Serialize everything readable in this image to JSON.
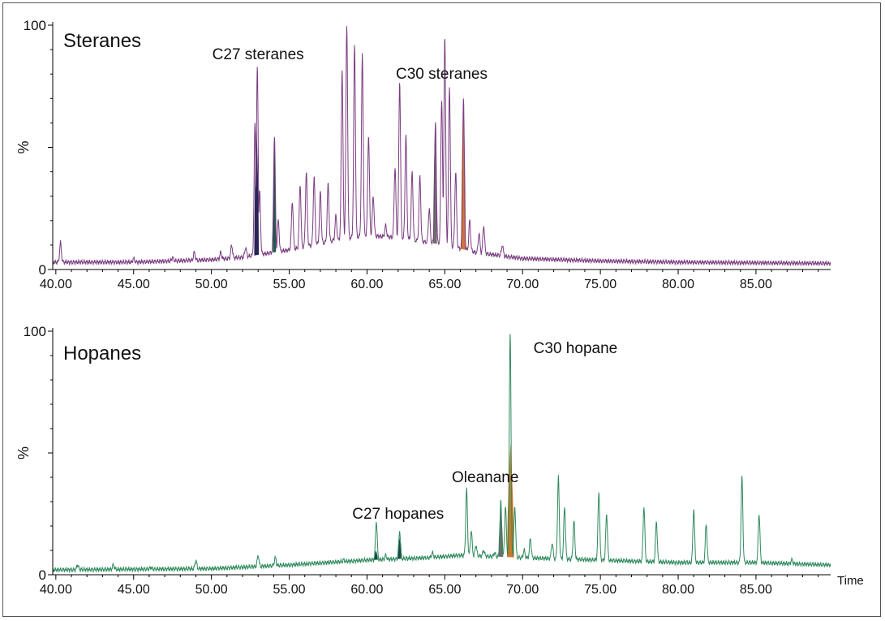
{
  "colors": {
    "steranes_trace": "#7a3c80",
    "hopanes_trace": "#2f8a5c",
    "axis": "#000000",
    "c27_sterane_fill": "#2b2257",
    "c27_sterane_fill_2": "#1f5a4a",
    "c30_sterane_fill": "#6e6e6e",
    "c30_sterane_fill_2": "#d0743a",
    "c27_hopane_fill": "#164a4a",
    "oleanane_fill": "#6e6e6e",
    "c30_hopane_fill": "#c87a2a"
  },
  "chart_data": [
    {
      "type": "line",
      "title": "Steranes",
      "xlabel": "",
      "ylabel": "%",
      "xlim": [
        39.8,
        89.8
      ],
      "ylim": [
        0,
        100
      ],
      "x_ticks": [
        "40.00",
        "45.00",
        "50.00",
        "55.00",
        "60.00",
        "65.00",
        "70.00",
        "75.00",
        "80.00",
        "85.00"
      ],
      "y_ticks": [
        "0",
        "%",
        "100"
      ],
      "baseline": [
        [
          39.8,
          3
        ],
        [
          45,
          3
        ],
        [
          50,
          4
        ],
        [
          52,
          5
        ],
        [
          55,
          8
        ],
        [
          58,
          12
        ],
        [
          60,
          14
        ],
        [
          62,
          13
        ],
        [
          65,
          10
        ],
        [
          67,
          7
        ],
        [
          70,
          4.5
        ],
        [
          75,
          3.5
        ],
        [
          80,
          3
        ],
        [
          89.8,
          2.5
        ]
      ],
      "peaks": [
        [
          40.3,
          11
        ],
        [
          45,
          4.5
        ],
        [
          47.5,
          5
        ],
        [
          48.9,
          7
        ],
        [
          50.6,
          7
        ],
        [
          51.3,
          10
        ],
        [
          52.2,
          9
        ],
        [
          52.8,
          60
        ],
        [
          52.95,
          83
        ],
        [
          53.1,
          32
        ],
        [
          54.05,
          55
        ],
        [
          54.3,
          20
        ],
        [
          55.2,
          28
        ],
        [
          55.7,
          35
        ],
        [
          56.1,
          40
        ],
        [
          56.6,
          38
        ],
        [
          57,
          32
        ],
        [
          57.5,
          35
        ],
        [
          58,
          22
        ],
        [
          58.4,
          82
        ],
        [
          58.7,
          100
        ],
        [
          59.2,
          92
        ],
        [
          59.7,
          88
        ],
        [
          60.1,
          55
        ],
        [
          60.4,
          30
        ],
        [
          61.2,
          18
        ],
        [
          61.8,
          42
        ],
        [
          62.1,
          77
        ],
        [
          62.5,
          55
        ],
        [
          62.9,
          40
        ],
        [
          63.4,
          38
        ],
        [
          64,
          25
        ],
        [
          64.4,
          60
        ],
        [
          64.8,
          70
        ],
        [
          65,
          96
        ],
        [
          65.3,
          75
        ],
        [
          65.7,
          40
        ],
        [
          66.2,
          70
        ],
        [
          66.6,
          20
        ],
        [
          67.2,
          15
        ],
        [
          67.5,
          18
        ],
        [
          68.7,
          10
        ]
      ],
      "annotations": [
        {
          "text": "C27 steranes",
          "x": 53.0,
          "y": 86
        },
        {
          "text": "C30 steranes",
          "x": 64.8,
          "y": 78
        }
      ],
      "highlighted": [
        {
          "from": 52.75,
          "to": 53.05,
          "color": "c27_sterane_fill",
          "height": 60
        },
        {
          "from": 53.95,
          "to": 54.15,
          "color": "c27_sterane_fill_2",
          "height": 55
        },
        {
          "from": 64.25,
          "to": 64.5,
          "color": "c30_sterane_fill",
          "height": 60
        },
        {
          "from": 66.05,
          "to": 66.35,
          "color": "c30_sterane_fill_2",
          "height": 72
        }
      ]
    },
    {
      "type": "line",
      "title": "Hopanes",
      "xlabel": "Time",
      "ylabel": "%",
      "xlim": [
        39.8,
        89.8
      ],
      "ylim": [
        0,
        100
      ],
      "x_ticks": [
        "40.00",
        "45.00",
        "50.00",
        "55.00",
        "60.00",
        "65.00",
        "70.00",
        "75.00",
        "80.00",
        "85.00"
      ],
      "y_ticks": [
        "0",
        "%",
        "100"
      ],
      "baseline": [
        [
          39.8,
          2
        ],
        [
          50,
          2.5
        ],
        [
          55,
          4
        ],
        [
          60,
          6
        ],
        [
          64,
          7
        ],
        [
          66,
          8
        ],
        [
          70,
          7
        ],
        [
          75,
          6
        ],
        [
          80,
          5
        ],
        [
          85,
          5
        ],
        [
          89.8,
          4
        ]
      ],
      "peaks": [
        [
          41.4,
          4
        ],
        [
          43.7,
          4
        ],
        [
          46.1,
          3
        ],
        [
          49,
          6
        ],
        [
          53,
          8
        ],
        [
          54.1,
          7
        ],
        [
          58.5,
          6
        ],
        [
          60.6,
          22
        ],
        [
          61.2,
          8
        ],
        [
          62.1,
          18
        ],
        [
          64.2,
          9
        ],
        [
          66.4,
          35
        ],
        [
          66.7,
          18
        ],
        [
          67,
          12
        ],
        [
          67.5,
          10
        ],
        [
          68.2,
          9
        ],
        [
          68.6,
          30
        ],
        [
          68.9,
          28
        ],
        [
          69.2,
          100
        ],
        [
          69.5,
          28
        ],
        [
          70.1,
          10
        ],
        [
          70.5,
          15
        ],
        [
          71.9,
          13
        ],
        [
          72.3,
          40
        ],
        [
          72.7,
          28
        ],
        [
          73.3,
          22
        ],
        [
          74.9,
          34
        ],
        [
          75.4,
          25
        ],
        [
          77.8,
          28
        ],
        [
          78.6,
          22
        ],
        [
          81,
          27
        ],
        [
          81.8,
          21
        ],
        [
          84.1,
          40
        ],
        [
          85.2,
          25
        ],
        [
          87.3,
          6
        ]
      ],
      "annotations": [
        {
          "text": "C27 hopanes",
          "x": 62.0,
          "y": 23
        },
        {
          "text": "Oleanane",
          "x": 67.6,
          "y": 38
        },
        {
          "text": "C30 hopane",
          "x": 73.4,
          "y": 91
        }
      ],
      "highlighted": [
        {
          "from": 60.45,
          "to": 60.7,
          "color": "c27_hopane_fill",
          "height": 10
        },
        {
          "from": 61.95,
          "to": 62.2,
          "color": "c27_hopane_fill",
          "height": 16
        },
        {
          "from": 68.45,
          "to": 68.75,
          "color": "oleanane_fill",
          "height": 29
        },
        {
          "from": 69.0,
          "to": 69.45,
          "color": "c30_hopane_fill",
          "height": 54
        }
      ]
    }
  ]
}
